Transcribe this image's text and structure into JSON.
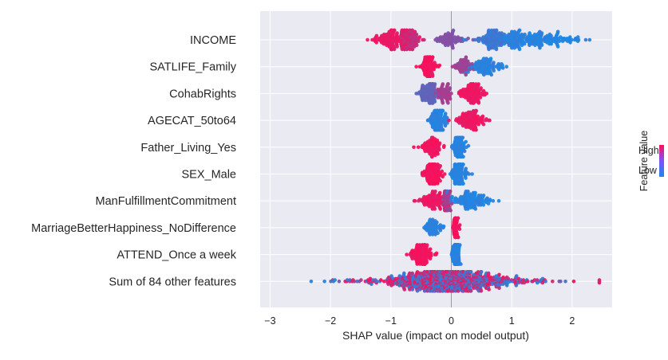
{
  "chart_data": {
    "type": "scatter",
    "subtype": "shap-beeswarm",
    "title": "",
    "xlabel": "SHAP value (impact on model output)",
    "ylabel": "",
    "xlim": [
      -3.2,
      2.65
    ],
    "xticks": [
      -3,
      -2,
      -1,
      0,
      1,
      2
    ],
    "grid": true,
    "colors": {
      "high": "#ff0d57",
      "low": "#1e88e5",
      "background": "#eaeaf2"
    },
    "colorbar": {
      "label": "Feature value",
      "high_label": "High",
      "low_label": "Low"
    },
    "features": [
      {
        "name": "INCOME",
        "clusters": [
          {
            "x": -0.95,
            "sd": 0.18,
            "n": 140,
            "color": 0.9
          },
          {
            "x": -0.68,
            "sd": 0.09,
            "n": 70,
            "color": 0.72
          },
          {
            "x": -0.02,
            "sd": 0.1,
            "n": 70,
            "color": 0.45
          },
          {
            "x": 0.72,
            "sd": 0.14,
            "n": 90,
            "color": 0.15
          },
          {
            "x": 1.15,
            "sd": 0.28,
            "n": 180,
            "color": 0.05
          },
          {
            "x": 1.8,
            "sd": 0.2,
            "n": 50,
            "color": 0.0
          }
        ]
      },
      {
        "name": "SATLIFE_Family",
        "clusters": [
          {
            "x": -0.38,
            "sd": 0.07,
            "n": 90,
            "color": 0.95
          },
          {
            "x": 0.18,
            "sd": 0.07,
            "n": 55,
            "color": 0.55
          },
          {
            "x": 0.55,
            "sd": 0.15,
            "n": 100,
            "color": 0.05
          }
        ]
      },
      {
        "name": "CohabRights",
        "clusters": [
          {
            "x": -0.38,
            "sd": 0.08,
            "n": 100,
            "color": 0.3
          },
          {
            "x": -0.12,
            "sd": 0.07,
            "n": 60,
            "color": 0.6
          },
          {
            "x": 0.35,
            "sd": 0.1,
            "n": 110,
            "color": 0.92
          }
        ]
      },
      {
        "name": "AGECAT_50to64",
        "clusters": [
          {
            "x": -0.22,
            "sd": 0.07,
            "n": 140,
            "color": 0.04
          },
          {
            "x": 0.32,
            "sd": 0.12,
            "n": 110,
            "color": 0.92
          }
        ]
      },
      {
        "name": "Father_Living_Yes",
        "clusters": [
          {
            "x": -0.32,
            "sd": 0.08,
            "n": 80,
            "color": 0.95
          },
          {
            "x": 0.12,
            "sd": 0.05,
            "n": 110,
            "color": 0.04
          }
        ]
      },
      {
        "name": "SEX_Male",
        "clusters": [
          {
            "x": -0.3,
            "sd": 0.07,
            "n": 140,
            "color": 0.95
          },
          {
            "x": 0.14,
            "sd": 0.06,
            "n": 130,
            "color": 0.04
          }
        ]
      },
      {
        "name": "ManFulfillmentCommitment",
        "clusters": [
          {
            "x": -0.3,
            "sd": 0.1,
            "n": 90,
            "color": 0.92
          },
          {
            "x": -0.08,
            "sd": 0.04,
            "n": 50,
            "color": 0.6
          },
          {
            "x": 0.3,
            "sd": 0.17,
            "n": 130,
            "color": 0.04
          }
        ]
      },
      {
        "name": "MarriageBetterHappiness_NoDifference",
        "clusters": [
          {
            "x": -0.3,
            "sd": 0.08,
            "n": 60,
            "color": 0.05
          },
          {
            "x": 0.08,
            "sd": 0.03,
            "n": 50,
            "color": 0.95
          }
        ]
      },
      {
        "name": "ATTEND_Once a week",
        "clusters": [
          {
            "x": -0.5,
            "sd": 0.09,
            "n": 120,
            "color": 0.95
          },
          {
            "x": 0.08,
            "sd": 0.03,
            "n": 140,
            "color": 0.04
          }
        ]
      },
      {
        "name": "Sum of 84 other features",
        "clusters": [
          {
            "x": -0.05,
            "sd": 0.48,
            "n": 500,
            "color": "mixed"
          },
          {
            "x": -0.2,
            "sd": 0.95,
            "n": 130,
            "color": "mixed"
          },
          {
            "x": 0.2,
            "sd": 0.85,
            "n": 120,
            "color": "mixed"
          }
        ]
      }
    ]
  }
}
